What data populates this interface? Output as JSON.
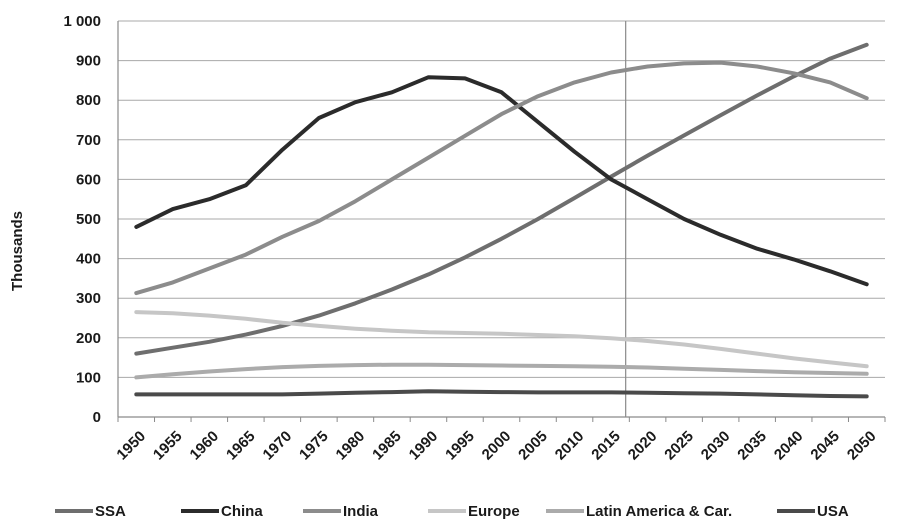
{
  "chart_data": {
    "type": "line",
    "ylabel": "Thousands",
    "xlabel": "",
    "ylim": [
      0,
      1000
    ],
    "y_ticks": [
      0,
      100,
      200,
      300,
      400,
      500,
      600,
      700,
      800,
      900,
      1000
    ],
    "y_tick_labels": [
      "0",
      "100",
      "200",
      "300",
      "400",
      "500",
      "600",
      "700",
      "800",
      "900",
      "1 000"
    ],
    "categories": [
      "1950",
      "1955",
      "1960",
      "1965",
      "1970",
      "1975",
      "1980",
      "1985",
      "1990",
      "1995",
      "2000",
      "2005",
      "2010",
      "2015",
      "2020",
      "2025",
      "2030",
      "2035",
      "2040",
      "2045",
      "2050"
    ],
    "grid": "horizontal",
    "legend_position": "bottom",
    "reference_line_at": "2017",
    "series": [
      {
        "name": "SSA",
        "color": "#6e6e6e",
        "values": [
          160,
          175,
          190,
          208,
          230,
          256,
          287,
          322,
          360,
          403,
          450,
          500,
          553,
          607,
          660,
          711,
          762,
          812,
          860,
          905,
          940
        ]
      },
      {
        "name": "China",
        "color": "#2b2b2b",
        "values": [
          480,
          525,
          550,
          585,
          675,
          755,
          795,
          820,
          858,
          855,
          820,
          745,
          670,
          600,
          550,
          500,
          460,
          425,
          398,
          368,
          335
        ]
      },
      {
        "name": "India",
        "color": "#8c8c8c",
        "values": [
          313,
          340,
          375,
          410,
          455,
          495,
          545,
          600,
          655,
          710,
          765,
          810,
          845,
          870,
          885,
          893,
          895,
          885,
          868,
          845,
          805
        ]
      },
      {
        "name": "Europe",
        "color": "#c6c6c6",
        "values": [
          265,
          262,
          256,
          248,
          238,
          230,
          223,
          218,
          214,
          212,
          210,
          207,
          204,
          199,
          192,
          183,
          172,
          160,
          148,
          138,
          128
        ]
      },
      {
        "name": "Latin America & Car.",
        "color": "#ababab",
        "values": [
          100,
          108,
          115,
          121,
          126,
          129,
          131,
          132,
          132,
          131,
          130,
          129,
          128,
          127,
          125,
          122,
          119,
          116,
          113,
          111,
          109
        ]
      },
      {
        "name": "USA",
        "color": "#4a4a4a",
        "values": [
          57,
          57,
          57,
          57,
          57,
          59,
          61,
          63,
          65,
          64,
          63,
          62,
          62,
          62,
          61,
          60,
          59,
          57,
          55,
          53,
          52
        ]
      }
    ]
  }
}
